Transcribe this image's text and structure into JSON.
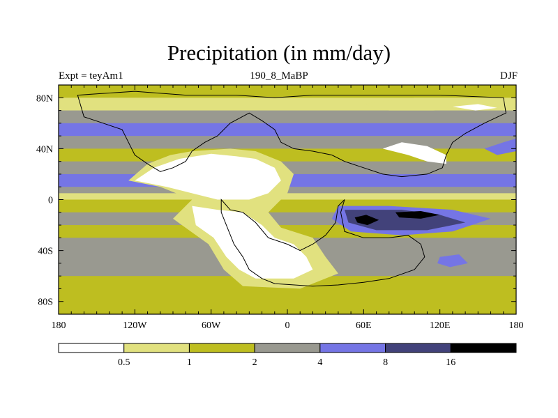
{
  "chart_data": {
    "type": "heatmap",
    "title": "Precipitation (in mm/day)",
    "left_string": "Expt = teyAm1",
    "center_string": "190_8_MaBP",
    "right_string": "DJF",
    "x_ticks": [
      {
        "value": -180,
        "label": "180"
      },
      {
        "value": -120,
        "label": "120W"
      },
      {
        "value": -60,
        "label": "60W"
      },
      {
        "value": 0,
        "label": "0"
      },
      {
        "value": 60,
        "label": "60E"
      },
      {
        "value": 120,
        "label": "120E"
      },
      {
        "value": 180,
        "label": "180"
      }
    ],
    "y_ticks": [
      {
        "value": 80,
        "label": "80N"
      },
      {
        "value": 40,
        "label": "40N"
      },
      {
        "value": 0,
        "label": "0"
      },
      {
        "value": -40,
        "label": "40S"
      },
      {
        "value": -80,
        "label": "80S"
      }
    ],
    "xlim": [
      -180,
      180
    ],
    "ylim": [
      -90,
      90
    ],
    "units": "mm/day",
    "levels": [
      0.5,
      1,
      2,
      4,
      8,
      16
    ],
    "level_labels": [
      "0.5",
      "1",
      "2",
      "4",
      "8",
      "16"
    ],
    "colors": [
      "#ffffff",
      "#e1e17f",
      "#bebe20",
      "#999990",
      "#7575e5",
      "#42427a",
      "#000000"
    ],
    "bands": [
      {
        "lat": [
          80,
          90
        ],
        "cls": 2
      },
      {
        "lat": [
          70,
          80
        ],
        "cls": 1
      },
      {
        "lat": [
          60,
          70
        ],
        "cls": 3
      },
      {
        "lat": [
          50,
          60
        ],
        "cls": 4
      },
      {
        "lat": [
          40,
          50
        ],
        "cls": 3
      },
      {
        "lat": [
          30,
          40
        ],
        "cls": 2
      },
      {
        "lat": [
          20,
          30
        ],
        "cls": 3
      },
      {
        "lat": [
          10,
          20
        ],
        "cls": 4
      },
      {
        "lat": [
          5,
          10
        ],
        "cls": 3
      },
      {
        "lat": [
          0,
          5
        ],
        "cls": 1
      },
      {
        "lat": [
          -10,
          0
        ],
        "cls": 2
      },
      {
        "lat": [
          -20,
          -10
        ],
        "cls": 3
      },
      {
        "lat": [
          -30,
          -20
        ],
        "cls": 2
      },
      {
        "lat": [
          -45,
          -30
        ],
        "cls": 3
      },
      {
        "lat": [
          -60,
          -45
        ],
        "cls": 3
      },
      {
        "lat": [
          -70,
          -60
        ],
        "cls": 2
      },
      {
        "lat": [
          -90,
          -70
        ],
        "cls": 2
      }
    ],
    "regions": [
      {
        "cls": 1,
        "points": [
          [
            -110,
            28
          ],
          [
            -92,
            35
          ],
          [
            -75,
            38
          ],
          [
            -45,
            40
          ],
          [
            -25,
            38
          ],
          [
            -5,
            30
          ],
          [
            5,
            20
          ],
          [
            0,
            5
          ],
          [
            -15,
            -10
          ],
          [
            -5,
            -22
          ],
          [
            20,
            -30
          ],
          [
            30,
            -45
          ],
          [
            40,
            -58
          ],
          [
            10,
            -70
          ],
          [
            -35,
            -68
          ],
          [
            -50,
            -55
          ],
          [
            -62,
            -35
          ],
          [
            -90,
            -15
          ],
          [
            -75,
            0
          ],
          [
            -100,
            10
          ],
          [
            -125,
            15
          ]
        ]
      },
      {
        "cls": 0,
        "points": [
          [
            -105,
            25
          ],
          [
            -85,
            32
          ],
          [
            -60,
            36
          ],
          [
            -40,
            34
          ],
          [
            -25,
            32
          ],
          [
            -10,
            25
          ],
          [
            -5,
            15
          ],
          [
            -15,
            5
          ],
          [
            -30,
            0
          ],
          [
            -55,
            0
          ],
          [
            -75,
            5
          ],
          [
            -95,
            10
          ],
          [
            -120,
            15
          ]
        ]
      },
      {
        "cls": 0,
        "points": [
          [
            -75,
            -5
          ],
          [
            -55,
            -8
          ],
          [
            -35,
            -10
          ],
          [
            -20,
            -20
          ],
          [
            -10,
            -30
          ],
          [
            5,
            -35
          ],
          [
            15,
            -45
          ],
          [
            20,
            -55
          ],
          [
            5,
            -62
          ],
          [
            -25,
            -62
          ],
          [
            -38,
            -55
          ],
          [
            -48,
            -45
          ],
          [
            -58,
            -30
          ],
          [
            -72,
            -20
          ]
        ]
      },
      {
        "cls": 0,
        "points": [
          [
            75,
            40
          ],
          [
            95,
            35
          ],
          [
            110,
            30
          ],
          [
            125,
            28
          ],
          [
            125,
            35
          ],
          [
            110,
            42
          ],
          [
            90,
            45
          ]
        ]
      },
      {
        "cls": 1,
        "points": [
          [
            60,
            75
          ],
          [
            100,
            80
          ],
          [
            140,
            80
          ],
          [
            150,
            72
          ],
          [
            115,
            70
          ],
          [
            80,
            70
          ]
        ]
      },
      {
        "cls": 0,
        "points": [
          [
            130,
            73
          ],
          [
            150,
            75
          ],
          [
            165,
            72
          ],
          [
            148,
            70
          ]
        ]
      },
      {
        "cls": 4,
        "points": [
          [
            40,
            -5
          ],
          [
            80,
            -5
          ],
          [
            130,
            -8
          ],
          [
            160,
            -15
          ],
          [
            130,
            -25
          ],
          [
            90,
            -28
          ],
          [
            50,
            -25
          ],
          [
            35,
            -15
          ]
        ]
      },
      {
        "cls": 5,
        "points": [
          [
            45,
            -8
          ],
          [
            90,
            -8
          ],
          [
            120,
            -12
          ],
          [
            140,
            -18
          ],
          [
            110,
            -24
          ],
          [
            70,
            -24
          ],
          [
            48,
            -18
          ]
        ]
      },
      {
        "cls": 6,
        "points": [
          [
            53,
            -14
          ],
          [
            62,
            -12
          ],
          [
            72,
            -16
          ],
          [
            63,
            -20
          ],
          [
            55,
            -18
          ]
        ]
      },
      {
        "cls": 6,
        "points": [
          [
            85,
            -10
          ],
          [
            105,
            -9
          ],
          [
            120,
            -12
          ],
          [
            105,
            -15
          ],
          [
            88,
            -14
          ]
        ]
      },
      {
        "cls": 4,
        "points": [
          [
            120,
            -45
          ],
          [
            135,
            -43
          ],
          [
            142,
            -50
          ],
          [
            128,
            -53
          ],
          [
            118,
            -50
          ]
        ]
      },
      {
        "cls": 4,
        "points": [
          [
            155,
            40
          ],
          [
            170,
            45
          ],
          [
            180,
            48
          ],
          [
            180,
            38
          ],
          [
            165,
            35
          ]
        ]
      }
    ],
    "coastlines": [
      {
        "points": [
          [
            -165,
            82
          ],
          [
            -120,
            85
          ],
          [
            -80,
            82
          ],
          [
            -40,
            82
          ],
          [
            -10,
            80
          ],
          [
            20,
            82
          ],
          [
            60,
            82
          ],
          [
            120,
            82
          ],
          [
            170,
            80
          ],
          [
            172,
            68
          ],
          [
            155,
            60
          ],
          [
            140,
            52
          ],
          [
            130,
            45
          ],
          [
            125,
            35
          ],
          [
            122,
            25
          ],
          [
            110,
            20
          ],
          [
            90,
            18
          ],
          [
            75,
            20
          ],
          [
            60,
            25
          ],
          [
            45,
            30
          ],
          [
            35,
            35
          ],
          [
            20,
            38
          ],
          [
            5,
            40
          ],
          [
            -5,
            45
          ],
          [
            -10,
            55
          ],
          [
            -20,
            62
          ],
          [
            -30,
            68
          ],
          [
            -45,
            60
          ],
          [
            -55,
            50
          ],
          [
            -65,
            45
          ],
          [
            -75,
            38
          ],
          [
            -80,
            30
          ],
          [
            -90,
            25
          ],
          [
            -100,
            22
          ],
          [
            -110,
            28
          ],
          [
            -120,
            35
          ],
          [
            -125,
            45
          ],
          [
            -130,
            55
          ],
          [
            -145,
            60
          ],
          [
            -160,
            65
          ]
        ]
      },
      {
        "points": [
          [
            -52,
            0
          ],
          [
            -45,
            -8
          ],
          [
            -35,
            -10
          ],
          [
            -25,
            -18
          ],
          [
            -15,
            -30
          ],
          [
            0,
            -35
          ],
          [
            10,
            -40
          ],
          [
            20,
            -35
          ],
          [
            30,
            -28
          ],
          [
            38,
            -18
          ],
          [
            40,
            -5
          ],
          [
            45,
            0
          ],
          [
            42,
            -10
          ],
          [
            45,
            -25
          ],
          [
            60,
            -30
          ],
          [
            80,
            -30
          ],
          [
            95,
            -28
          ],
          [
            105,
            -35
          ],
          [
            108,
            -45
          ],
          [
            100,
            -55
          ],
          [
            80,
            -62
          ],
          [
            60,
            -65
          ],
          [
            40,
            -67
          ],
          [
            20,
            -68
          ],
          [
            -10,
            -66
          ],
          [
            -20,
            -62
          ],
          [
            -30,
            -55
          ],
          [
            -35,
            -45
          ],
          [
            -42,
            -35
          ],
          [
            -48,
            -20
          ],
          [
            -52,
            -10
          ]
        ]
      }
    ]
  }
}
